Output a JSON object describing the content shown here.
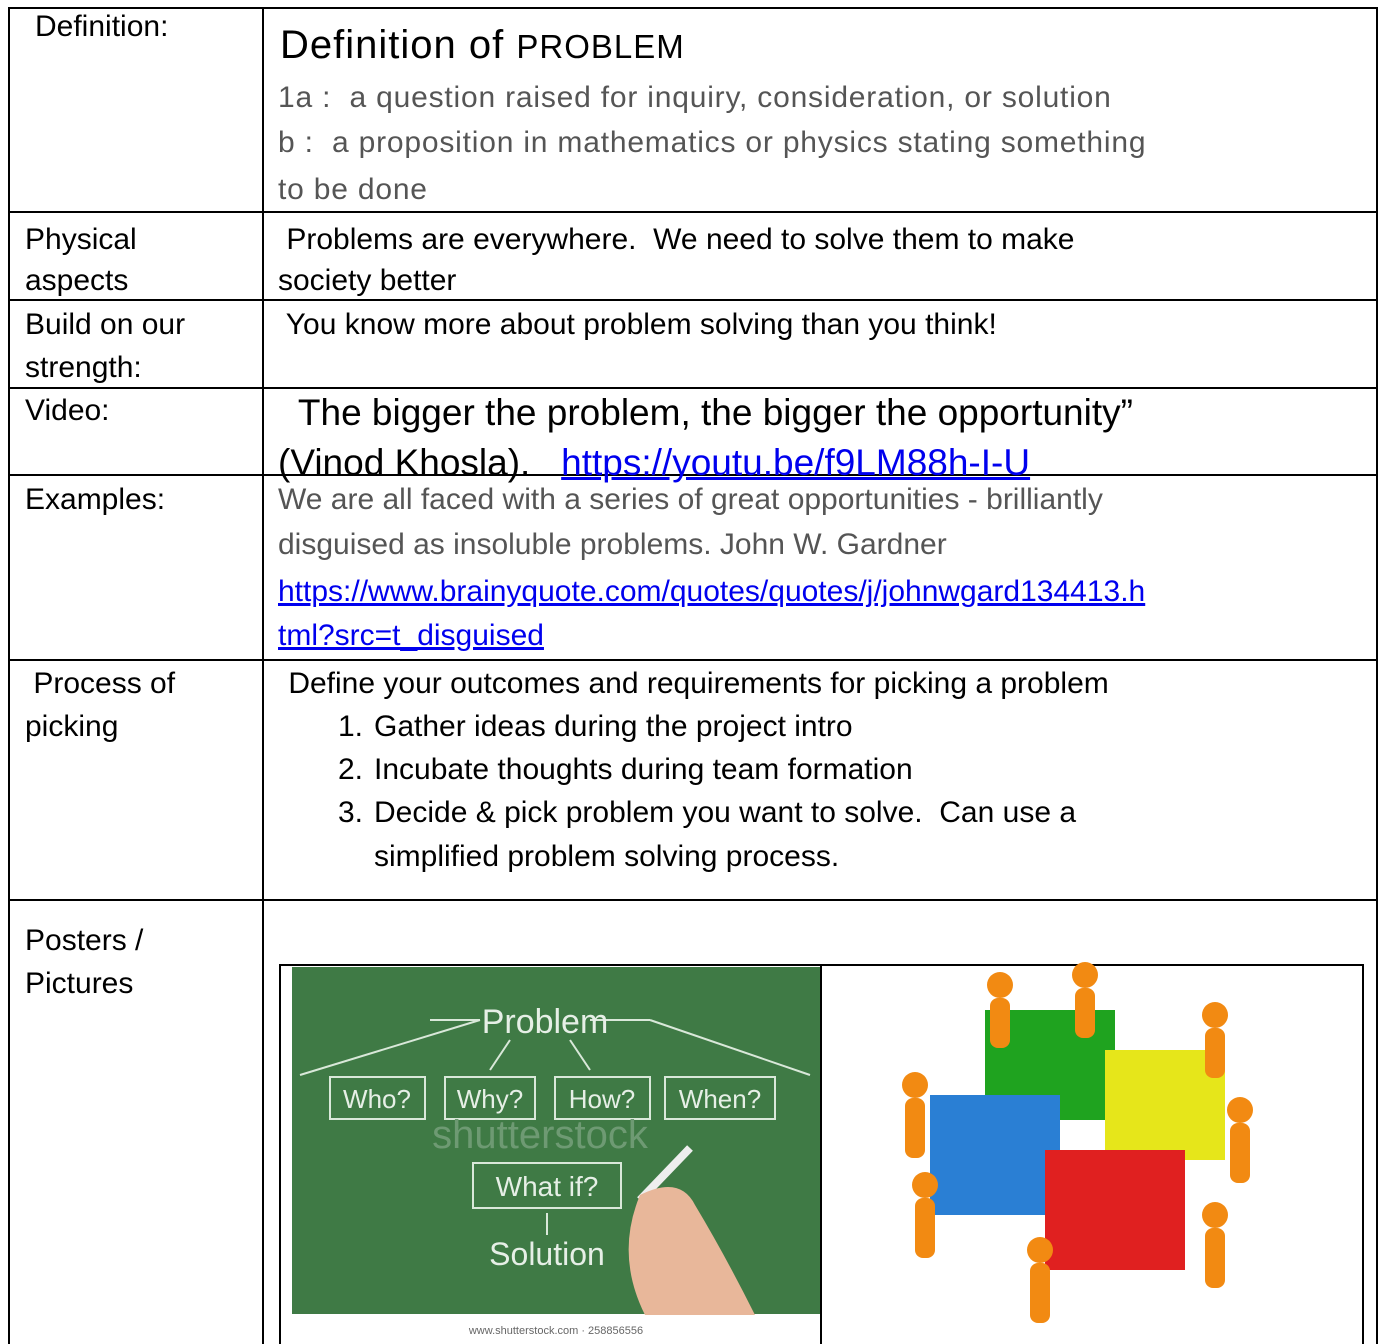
{
  "table": {
    "rows": [
      {
        "label": [
          "Definition:"
        ],
        "heading": "Definition of",
        "heading_word": "PROBLEM",
        "lines": [
          "1a :  a question raised for inquiry, consideration, or solution",
          "b :  a proposition in mathematics or physics stating something",
          "to be done"
        ]
      },
      {
        "label": [
          "Physical",
          "aspects"
        ],
        "lines": [
          " Problems are everywhere.  We need to solve them to make",
          "society better"
        ]
      },
      {
        "label": [
          "Build on our",
          "strength:"
        ],
        "lines": [
          " You know more about problem solving than you think!"
        ]
      },
      {
        "label": [
          "Video:"
        ],
        "quote": "  The bigger the problem, the bigger the opportunity”",
        "attribution": "(Vinod Khosla).",
        "link": "https://youtu.be/f9LM88h-I-U"
      },
      {
        "label": [
          "Examples:"
        ],
        "lines": [
          "We are all faced with a series of great opportunities - brilliantly",
          "disguised as insoluble problems. John W. Gardner"
        ],
        "link_lines": [
          "https://www.brainyquote.com/quotes/quotes/j/johnwgard134413.h",
          "tml?src=t_disguised"
        ]
      },
      {
        "label": [
          " Process of",
          "picking"
        ],
        "intro": " Define your outcomes and requirements for picking a problem",
        "steps": [
          {
            "number": "1.",
            "lines": [
              "Gather ideas during the project intro"
            ]
          },
          {
            "number": "2.",
            "lines": [
              "Incubate thoughts during team formation"
            ]
          },
          {
            "number": "3.",
            "lines": [
              "Decide & pick problem you want to solve.  Can use a",
              "simplified problem solving process."
            ]
          }
        ]
      },
      {
        "label": [
          "Posters /",
          "Pictures"
        ],
        "board": {
          "top": "Problem",
          "boxes": [
            "Who?",
            "Why?",
            "How?",
            "When?"
          ],
          "middle": "What if?",
          "bottom": "Solution",
          "watermark": "shutterstock",
          "credit": "www.shutterstock.com · 258856556"
        }
      }
    ]
  }
}
